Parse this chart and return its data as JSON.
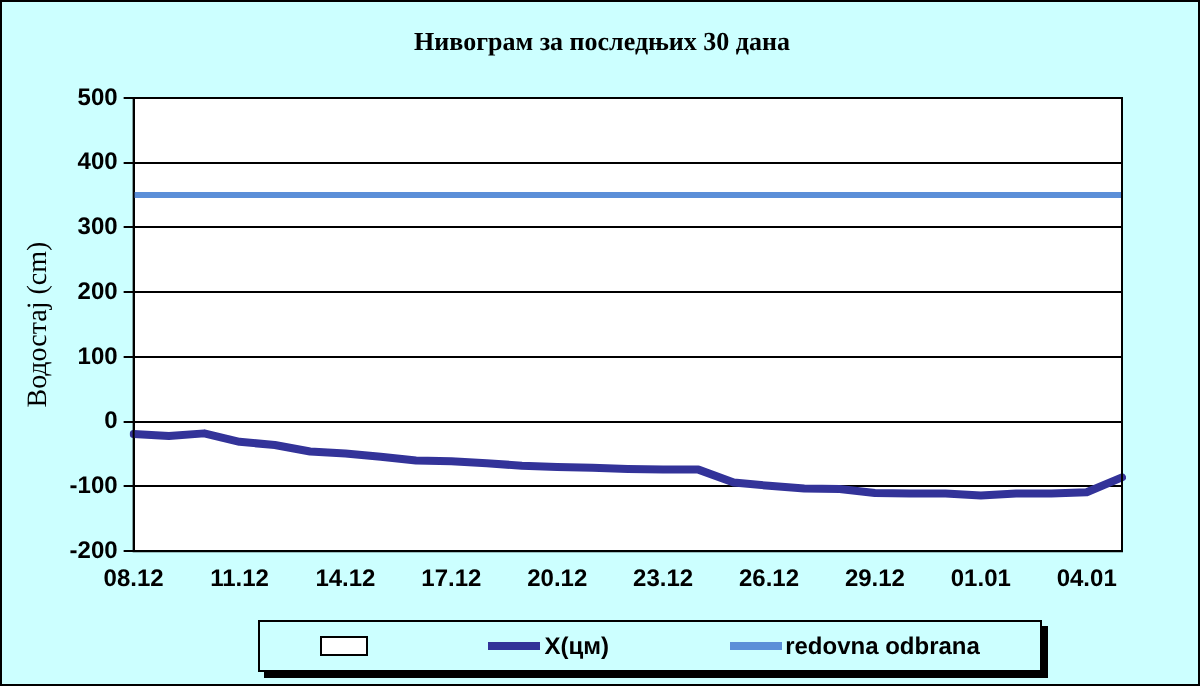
{
  "chart_data": {
    "type": "line",
    "title": "Нивограм за последњих 30 дана",
    "ylabel": "Водостај (cm)",
    "categories": [
      "08.12",
      null,
      null,
      "11.12",
      null,
      null,
      "14.12",
      null,
      null,
      "17.12",
      null,
      null,
      "20.12",
      null,
      null,
      "23.12",
      null,
      null,
      "26.12",
      null,
      null,
      "29.12",
      null,
      null,
      "01.01",
      null,
      null,
      "04.01",
      null
    ],
    "series": [
      {
        "name": "X(цм)",
        "color": "#333399",
        "values": [
          -19,
          -22,
          -18,
          -31,
          -36,
          -46,
          -49,
          -54,
          -60,
          -61,
          -64,
          -68,
          -70,
          -71,
          -73,
          -74,
          -74,
          -94,
          -99,
          -103,
          -104,
          -110,
          -111,
          -111,
          -114,
          -111,
          -111,
          -109,
          -86
        ]
      }
    ],
    "ref_lines": [
      {
        "axis": "y",
        "value": 350,
        "label": "redovna odbrana",
        "color": "#5b8fd8"
      }
    ],
    "ylim": [
      -200,
      500
    ],
    "yticks": [
      -200,
      -100,
      0,
      100,
      200,
      300,
      400,
      500
    ],
    "grid": "y",
    "legend": "bottom",
    "marker": "none",
    "line_style": "solid"
  }
}
